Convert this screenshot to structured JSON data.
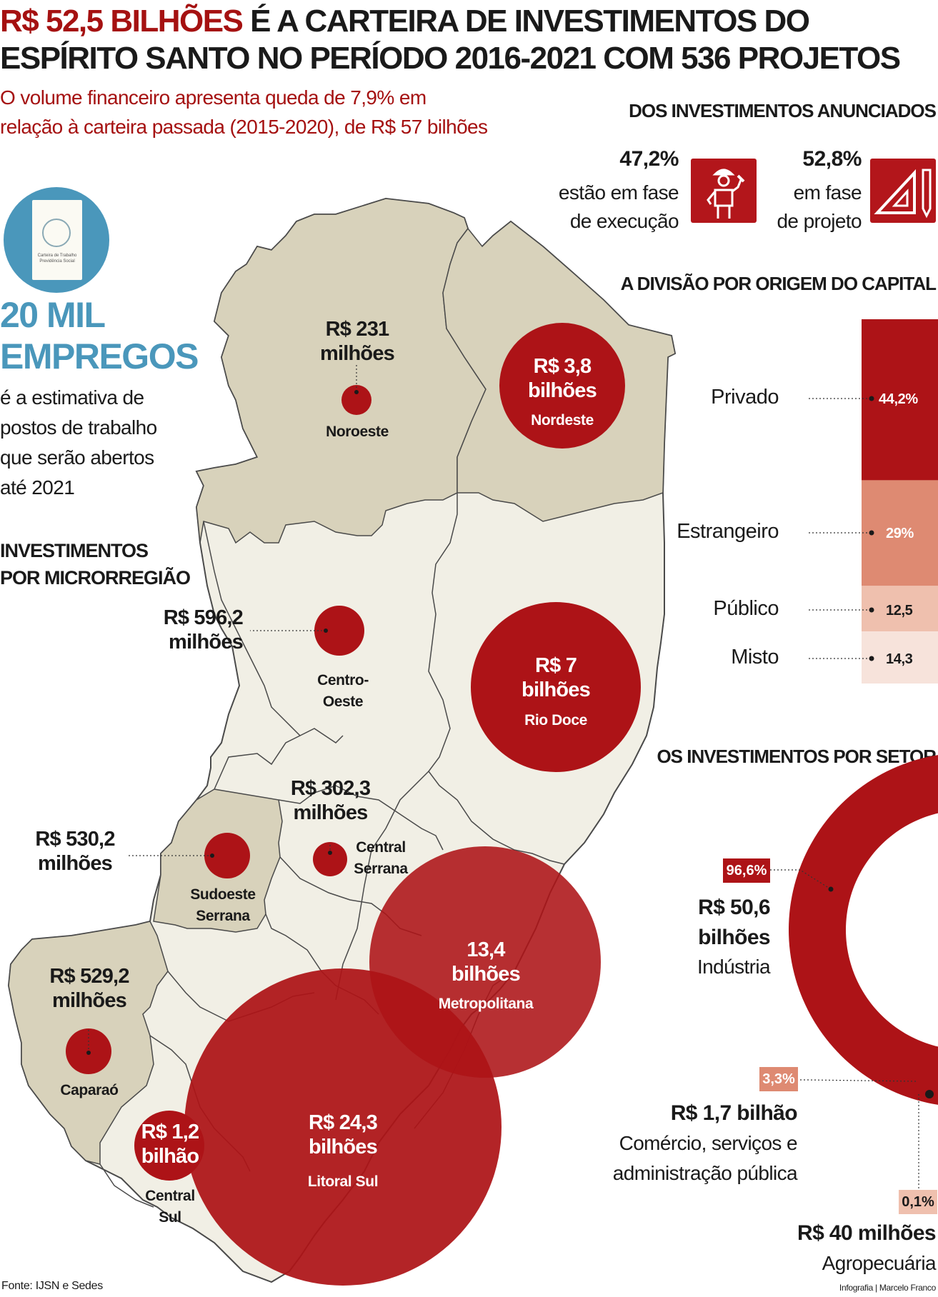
{
  "header": {
    "title_highlight": "R$ 52,5 BILHÕES",
    "title_rest_line1": " É A CARTEIRA DE INVESTIMENTOS DO",
    "title_line2": "ESPÍRITO SANTO NO PERÍODO 2016-2021 COM 536 PROJETOS",
    "subtitle_line1": "O volume financeiro apresenta queda de 7,9% em",
    "subtitle_line2": "relação à carteira passada (2015-2020), de R$ 57 bilhões"
  },
  "announced": {
    "heading": "DOS INVESTIMENTOS ANUNCIADOS",
    "execution": {
      "pct": "47,2%",
      "line1": "estão em fase",
      "line2": "de execução",
      "icon": "worker-icon"
    },
    "project": {
      "pct": "52,8%",
      "line1": "em fase",
      "line2": "de projeto",
      "icon": "ruler-pencil-icon"
    }
  },
  "jobs": {
    "icon_caption_1": "Carteira de Trabalho",
    "icon_caption_2": "Previdência Social",
    "big_line1": "20 MIL",
    "big_line2": "EMPREGOS",
    "text_line1": "é a estimativa de",
    "text_line2": "postos de trabalho",
    "text_line3": "que serão abertos",
    "text_line4": "até 2021"
  },
  "micro": {
    "heading_line1": "INVESTIMENTOS",
    "heading_line2": "POR MICRORREGIÃO",
    "regions": {
      "noroeste": {
        "value_l1": "R$ 231",
        "value_l2": "milhões",
        "name": "Noroeste"
      },
      "nordeste": {
        "value_l1": "R$ 3,8",
        "value_l2": "bilhões",
        "name": "Nordeste"
      },
      "centro_oeste": {
        "value_l1": "R$ 596,2",
        "value_l2": "milhões",
        "name_l1": "Centro-",
        "name_l2": "Oeste"
      },
      "rio_doce": {
        "value_l1": "R$ 7",
        "value_l2": "bilhões",
        "name": "Rio Doce"
      },
      "central_serrana": {
        "value_l1": "R$ 302,3",
        "value_l2": "milhões",
        "name_l1": "Central",
        "name_l2": "Serrana"
      },
      "sudoeste_serrana": {
        "value_l1": "R$ 530,2",
        "value_l2": "milhões",
        "name_l1": "Sudoeste",
        "name_l2": "Serrana"
      },
      "metropolitana": {
        "value_l1": "13,4",
        "value_l2": "bilhões",
        "name": "Metropolitana"
      },
      "caparao": {
        "value_l1": "R$ 529,2",
        "value_l2": "milhões",
        "name": "Caparaó"
      },
      "central_sul": {
        "value_l1": "R$ 1,2",
        "value_l2": "bilhão",
        "name_l1": "Central",
        "name_l2": "Sul"
      },
      "litoral_sul": {
        "value_l1": "R$ 24,3",
        "value_l2": "bilhões",
        "name": "Litoral Sul"
      }
    }
  },
  "capital": {
    "heading": "A DIVISÃO POR ORIGEM DO CAPITAL",
    "items": [
      {
        "label": "Privado",
        "value": "44,2%",
        "share": 44.2,
        "color": "#ad1317"
      },
      {
        "label": "Estrangeiro",
        "value": "29%",
        "share": 29,
        "color": "#de8a72"
      },
      {
        "label": "Público",
        "value": "12,5",
        "share": 12.5,
        "color": "#efc0ae"
      },
      {
        "label": "Misto",
        "value": "14,3",
        "share": 14.3,
        "color": "#f7e3db"
      }
    ]
  },
  "sector": {
    "heading": "OS INVESTIMENTOS POR SETOR",
    "items": [
      {
        "pct": "96,6%",
        "value": "R$ 50,6",
        "value_l2": "bilhões",
        "label": "Indústria",
        "share": 96.6,
        "color": "#ad1317"
      },
      {
        "pct": "3,3%",
        "value": "R$ 1,7 bilhão",
        "label_l1": "Comércio, serviços e",
        "label_l2": "administração pública",
        "share": 3.3,
        "color": "#de8a72"
      },
      {
        "pct": "0,1%",
        "value": "R$ 40 milhões",
        "label": "Agropecuária",
        "share": 0.1,
        "color": "#efc0ae"
      }
    ]
  },
  "footer": {
    "source": "Fonte: IJSN e Sedes",
    "credit": "Infografia | Marcelo Franco"
  },
  "colors": {
    "accent": "#a51111",
    "bubble": "#ad1317",
    "blue": "#4a97bb",
    "map_dark": "#d8d2bb",
    "map_light": "#f1efe5"
  }
}
